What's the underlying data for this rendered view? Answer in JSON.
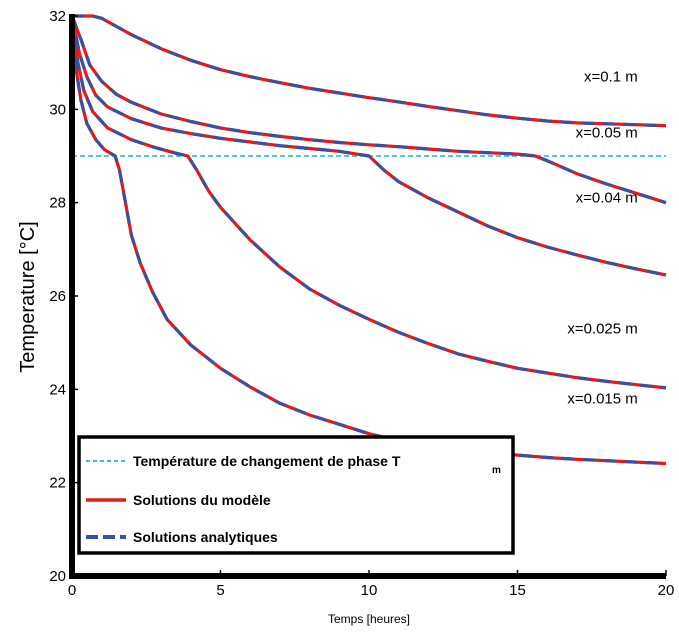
{
  "chart_data": {
    "type": "line",
    "title": "",
    "xlabel": "Temps [heures]",
    "ylabel": "Temperature [°C]",
    "xlim": [
      0,
      20
    ],
    "ylim": [
      20,
      32
    ],
    "xticks": [
      0,
      5,
      10,
      15,
      20
    ],
    "yticks": [
      20,
      22,
      24,
      26,
      28,
      30,
      32
    ],
    "grid": false,
    "legend_position": "lower-left",
    "colors": {
      "model": "#e31a1c",
      "analytic": "#3a50a0",
      "tm": "#1fb6c9",
      "axis": "#000000"
    },
    "phase_change_temperature": 29,
    "legend": {
      "tm_label": "Température de changement de phase T",
      "tm_subscript": "m",
      "model_label": "Solutions du modèle",
      "analytic_label": "Solutions analytiques"
    },
    "series": [
      {
        "annotation": "x=0.1 m",
        "annotation_at": [
          19.05,
          30.6
        ],
        "points": [
          [
            0,
            32
          ],
          [
            0.7,
            32
          ],
          [
            1,
            31.95
          ],
          [
            2,
            31.6
          ],
          [
            3,
            31.3
          ],
          [
            4,
            31.05
          ],
          [
            5,
            30.85
          ],
          [
            6,
            30.7
          ],
          [
            7,
            30.57
          ],
          [
            8,
            30.45
          ],
          [
            9,
            30.35
          ],
          [
            10,
            30.25
          ],
          [
            11,
            30.16
          ],
          [
            12,
            30.06
          ],
          [
            13,
            29.97
          ],
          [
            14,
            29.88
          ],
          [
            15,
            29.81
          ],
          [
            16,
            29.75
          ],
          [
            17,
            29.71
          ],
          [
            18,
            29.69
          ],
          [
            19,
            29.67
          ],
          [
            20,
            29.65
          ]
        ]
      },
      {
        "annotation": "x=0.05 m",
        "annotation_at": [
          19.05,
          29.4
        ],
        "points": [
          [
            0,
            32
          ],
          [
            0.3,
            31.5
          ],
          [
            0.6,
            30.95
          ],
          [
            1,
            30.6
          ],
          [
            1.5,
            30.32
          ],
          [
            2,
            30.15
          ],
          [
            3,
            29.9
          ],
          [
            4,
            29.74
          ],
          [
            5,
            29.6
          ],
          [
            6,
            29.5
          ],
          [
            7,
            29.42
          ],
          [
            8,
            29.35
          ],
          [
            9,
            29.29
          ],
          [
            10,
            29.24
          ],
          [
            11,
            29.2
          ],
          [
            12,
            29.15
          ],
          [
            13,
            29.1
          ],
          [
            14,
            29.07
          ],
          [
            15,
            29.04
          ],
          [
            15.6,
            29
          ],
          [
            16,
            28.9
          ],
          [
            17,
            28.62
          ],
          [
            18,
            28.4
          ],
          [
            19,
            28.2
          ],
          [
            20,
            28.0
          ]
        ]
      },
      {
        "annotation": "x=0.04 m",
        "annotation_at": [
          19.05,
          28.0
        ],
        "points": [
          [
            0,
            32
          ],
          [
            0.25,
            31.2
          ],
          [
            0.5,
            30.7
          ],
          [
            0.8,
            30.3
          ],
          [
            1.2,
            30.05
          ],
          [
            2,
            29.8
          ],
          [
            3,
            29.6
          ],
          [
            4,
            29.48
          ],
          [
            5,
            29.38
          ],
          [
            6,
            29.3
          ],
          [
            7,
            29.22
          ],
          [
            8,
            29.16
          ],
          [
            9,
            29.1
          ],
          [
            9.8,
            29.02
          ],
          [
            10,
            29
          ],
          [
            10.5,
            28.7
          ],
          [
            11,
            28.45
          ],
          [
            12,
            28.1
          ],
          [
            13,
            27.8
          ],
          [
            14,
            27.5
          ],
          [
            15,
            27.25
          ],
          [
            16,
            27.05
          ],
          [
            17,
            26.88
          ],
          [
            18,
            26.72
          ],
          [
            19,
            26.58
          ],
          [
            20,
            26.45
          ]
        ]
      },
      {
        "annotation": "x=0.025 m",
        "annotation_at": [
          19.05,
          25.2
        ],
        "points": [
          [
            0,
            32
          ],
          [
            0.2,
            31.0
          ],
          [
            0.4,
            30.4
          ],
          [
            0.7,
            29.95
          ],
          [
            1.2,
            29.6
          ],
          [
            2,
            29.35
          ],
          [
            2.8,
            29.18
          ],
          [
            3.5,
            29.06
          ],
          [
            3.9,
            29
          ],
          [
            4.2,
            28.7
          ],
          [
            4.6,
            28.25
          ],
          [
            5,
            27.9
          ],
          [
            6,
            27.2
          ],
          [
            7,
            26.62
          ],
          [
            8,
            26.15
          ],
          [
            9,
            25.8
          ],
          [
            10,
            25.5
          ],
          [
            11,
            25.22
          ],
          [
            12,
            24.98
          ],
          [
            13,
            24.76
          ],
          [
            14,
            24.6
          ],
          [
            15,
            24.45
          ],
          [
            16,
            24.35
          ],
          [
            17,
            24.25
          ],
          [
            18,
            24.17
          ],
          [
            19,
            24.1
          ],
          [
            20,
            24.03
          ]
        ]
      },
      {
        "annotation": "x=0.015 m",
        "annotation_at": [
          19.05,
          23.7
        ],
        "points": [
          [
            0,
            32
          ],
          [
            0.15,
            30.8
          ],
          [
            0.3,
            30.2
          ],
          [
            0.5,
            29.7
          ],
          [
            0.8,
            29.35
          ],
          [
            1.1,
            29.13
          ],
          [
            1.45,
            29
          ],
          [
            1.6,
            28.7
          ],
          [
            1.8,
            28.0
          ],
          [
            2,
            27.3
          ],
          [
            2.3,
            26.7
          ],
          [
            2.7,
            26.1
          ],
          [
            3.2,
            25.5
          ],
          [
            4,
            24.95
          ],
          [
            5,
            24.45
          ],
          [
            6,
            24.05
          ],
          [
            7,
            23.7
          ],
          [
            8,
            23.45
          ],
          [
            9,
            23.25
          ],
          [
            10,
            23.05
          ],
          [
            11,
            22.9
          ],
          [
            12,
            22.8
          ],
          [
            13,
            22.72
          ],
          [
            14,
            22.65
          ],
          [
            15,
            22.59
          ],
          [
            16,
            22.54
          ],
          [
            17,
            22.5
          ],
          [
            18,
            22.47
          ],
          [
            19,
            22.44
          ],
          [
            20,
            22.41
          ]
        ]
      }
    ]
  }
}
